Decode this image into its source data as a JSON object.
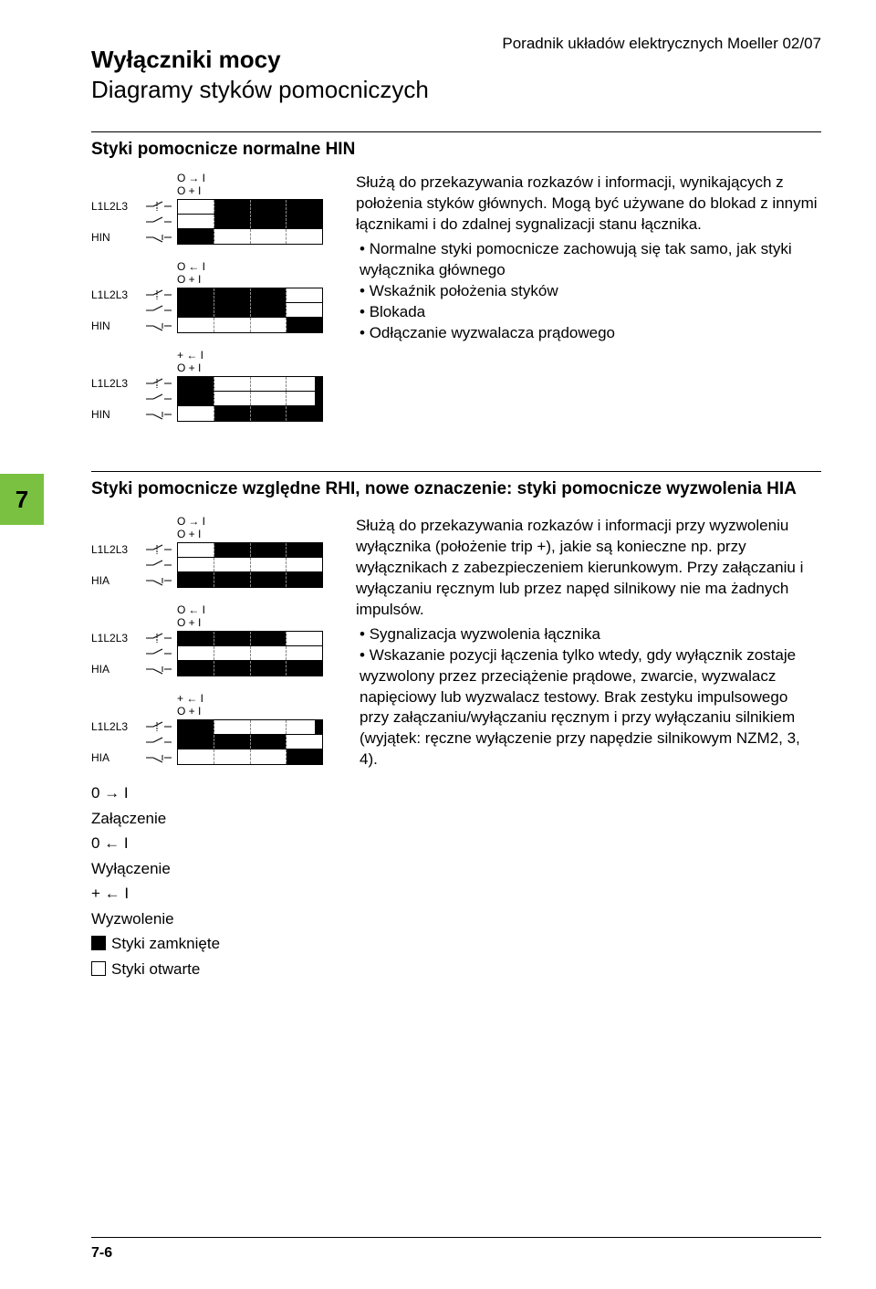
{
  "header_right": "Poradnik układów elektrycznych Moeller 02/07",
  "title_main": "Wyłączniki mocy",
  "title_sub": "Diagramy styków pomocniczych",
  "section1": {
    "title": "Styki pomocnicze normalne HIN",
    "text_intro": "Służą do przekazywania rozkazów i informacji, wynikających z położenia styków głównych. Mogą być używane do blokad z innymi łącznikami i do zdalnej sygnalizacji stanu łącznika.",
    "bullets": [
      "Normalne styki pomocnicze zachowują się tak samo, jak styki wyłącznika głównego",
      "Wskaźnik położenia styków",
      "Blokada",
      "Odłączanie wyzwalacza prądowego"
    ],
    "diagrams": [
      {
        "label_top": "L1L2L3",
        "label_bot": "HIN",
        "header": [
          "O",
          "→",
          "I",
          "/",
          "O",
          "+",
          "I"
        ],
        "rows": [
          [
            0,
            1,
            1,
            1
          ],
          [
            0,
            1,
            1,
            1
          ],
          [
            1,
            0,
            0,
            0
          ]
        ]
      },
      {
        "label_top": "L1L2L3",
        "label_bot": "HIN",
        "header": [
          "O",
          "←",
          "I",
          "/",
          "O",
          "+",
          "I"
        ],
        "rows": [
          [
            1,
            1,
            1,
            0
          ],
          [
            1,
            1,
            1,
            0
          ],
          [
            0,
            0,
            0,
            1
          ]
        ]
      },
      {
        "label_top": "L1L2L3",
        "label_bot": "HIN",
        "header": [
          "+",
          "←",
          "I",
          "/",
          "O",
          "+",
          "I"
        ],
        "rows": [
          [
            1,
            0,
            0,
            0
          ],
          [
            1,
            0,
            0,
            0
          ],
          [
            0,
            1,
            1,
            1
          ]
        ],
        "tiny_end": [
          true,
          true,
          false
        ]
      }
    ]
  },
  "section2": {
    "tab": "7",
    "title": "Styki pomocnicze względne RHI, nowe oznaczenie: styki pomocnicze wyzwolenia HIA",
    "text": "Służą do przekazywania rozkazów i informacji przy wyzwoleniu wyłącznika (położenie trip +), jakie są konieczne np. przy wyłącznikach z zabezpieczeniem kierunkowym. Przy załączaniu i wyłączaniu ręcznym lub przez napęd silnikowy nie ma żadnych impulsów.",
    "bullets": [
      "Sygnalizacja wyzwolenia łącznika",
      "Wskazanie pozycji łączenia tylko wtedy, gdy wyłącznik zostaje wyzwolony przez przeciążenie prądowe, zwarcie, wyzwalacz napięciowy lub wyzwalacz testowy. Brak zestyku impulsowego przy załączaniu/wyłączaniu ręcznym i przy wyłączaniu silnikiem (wyjątek: ręczne wyłączenie przy napędzie silnikowym NZM2, 3, 4)."
    ],
    "diagrams": [
      {
        "label_top": "L1L2L3",
        "label_bot": "HIA",
        "header": [
          "O",
          "→",
          "I",
          "/",
          "O",
          "+",
          "I"
        ],
        "rows": [
          [
            0,
            1,
            1,
            1
          ],
          [
            0,
            0,
            0,
            0
          ],
          [
            1,
            1,
            1,
            1
          ]
        ]
      },
      {
        "label_top": "L1L2L3",
        "label_bot": "HIA",
        "header": [
          "O",
          "←",
          "I",
          "/",
          "O",
          "+",
          "I"
        ],
        "rows": [
          [
            1,
            1,
            1,
            0
          ],
          [
            0,
            0,
            0,
            0
          ],
          [
            1,
            1,
            1,
            1
          ]
        ],
        "tiny_end": [
          false,
          false,
          false
        ]
      },
      {
        "label_top": "L1L2L3",
        "label_bot": "HIA",
        "header": [
          "+",
          "←",
          "I",
          "/",
          "O",
          "+",
          "I"
        ],
        "rows": [
          [
            1,
            0,
            0,
            0
          ],
          [
            1,
            1,
            1,
            0
          ],
          [
            0,
            0,
            0,
            1
          ]
        ],
        "tiny_end": [
          true,
          false,
          false
        ]
      }
    ],
    "legend": {
      "l1_sym": "0 → I",
      "l1_txt": "Załączenie",
      "l2_sym": "0 ← I",
      "l2_txt": "Wyłączenie",
      "l3_sym": "+ ← I",
      "l3_txt": "Wyzwolenie",
      "l4_txt": "Styki zamknięte",
      "l5_txt": "Styki otwarte"
    }
  },
  "page_num": "7-6"
}
